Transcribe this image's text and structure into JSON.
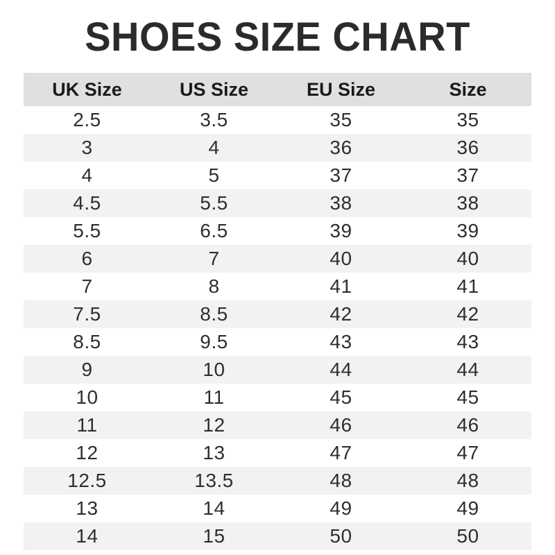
{
  "title": "SHOES SIZE CHART",
  "colors": {
    "title_text": "#2b2b2b",
    "header_bg": "#e0e0e0",
    "header_text": "#1a1a1a",
    "row_bg": "#ffffff",
    "row_alt_bg": "#f2f2f2",
    "cell_text": "#2e2e2e",
    "page_bg": "#ffffff"
  },
  "chart_data": {
    "type": "table",
    "title": "SHOES SIZE CHART",
    "columns": [
      "UK Size",
      "US Size",
      "EU Size",
      "Size"
    ],
    "rows": [
      [
        "2.5",
        "3.5",
        "35",
        "35"
      ],
      [
        "3",
        "4",
        "36",
        "36"
      ],
      [
        "4",
        "5",
        "37",
        "37"
      ],
      [
        "4.5",
        "5.5",
        "38",
        "38"
      ],
      [
        "5.5",
        "6.5",
        "39",
        "39"
      ],
      [
        "6",
        "7",
        "40",
        "40"
      ],
      [
        "7",
        "8",
        "41",
        "41"
      ],
      [
        "7.5",
        "8.5",
        "42",
        "42"
      ],
      [
        "8.5",
        "9.5",
        "43",
        "43"
      ],
      [
        "9",
        "10",
        "44",
        "44"
      ],
      [
        "10",
        "11",
        "45",
        "45"
      ],
      [
        "11",
        "12",
        "46",
        "46"
      ],
      [
        "12",
        "13",
        "47",
        "47"
      ],
      [
        "12.5",
        "13.5",
        "48",
        "48"
      ],
      [
        "13",
        "14",
        "49",
        "49"
      ],
      [
        "14",
        "15",
        "50",
        "50"
      ]
    ],
    "layout": {
      "striped": true,
      "first_data_row_background": "white",
      "header_background": "gray-band",
      "column_alignment": "center"
    }
  }
}
